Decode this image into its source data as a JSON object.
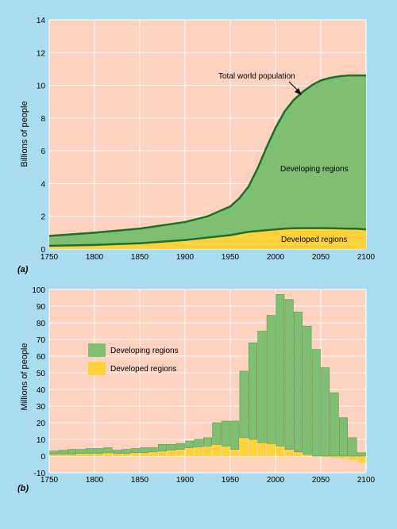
{
  "colors": {
    "background": "#a9dcef",
    "plot_bg": "#fdd2bf",
    "developing": "#7fbf72",
    "developed": "#ffd23a",
    "total_line": "#1f6e2c",
    "grid": "#ffffff",
    "bar_edge": "#5a9a50"
  },
  "chart_data": [
    {
      "type": "area",
      "panel_label": "(a)",
      "ylabel": "Billions of people",
      "xlim": [
        1750,
        2100
      ],
      "ylim": [
        0,
        14
      ],
      "xticks": [
        1750,
        1800,
        1850,
        1900,
        1950,
        2000,
        2050,
        2100
      ],
      "yticks": [
        0,
        2,
        4,
        6,
        8,
        10,
        12,
        14
      ],
      "grid": true,
      "x": [
        1750,
        1800,
        1850,
        1900,
        1925,
        1950,
        1960,
        1970,
        1980,
        1990,
        2000,
        2010,
        2020,
        2030,
        2040,
        2050,
        2060,
        2070,
        2080,
        2090,
        2100
      ],
      "series": [
        {
          "name": "Developed regions",
          "values": [
            0.2,
            0.25,
            0.35,
            0.55,
            0.7,
            0.85,
            0.95,
            1.05,
            1.1,
            1.15,
            1.2,
            1.25,
            1.27,
            1.28,
            1.28,
            1.28,
            1.27,
            1.26,
            1.25,
            1.24,
            1.2
          ]
        },
        {
          "name": "Total world population",
          "values": [
            0.8,
            1.0,
            1.25,
            1.65,
            2.0,
            2.6,
            3.1,
            3.8,
            4.9,
            6.2,
            7.4,
            8.4,
            9.1,
            9.6,
            10.0,
            10.3,
            10.45,
            10.55,
            10.6,
            10.6,
            10.6
          ]
        }
      ],
      "annotations": {
        "total": "Total world population",
        "developing": "Developing regions",
        "developed": "Developed regions"
      }
    },
    {
      "type": "bar",
      "stacked": true,
      "panel_label": "(b)",
      "ylabel": "Millions of people",
      "xlim": [
        1750,
        2100
      ],
      "ylim": [
        -10,
        100
      ],
      "xticks": [
        1750,
        1800,
        1850,
        1900,
        1950,
        2000,
        2050,
        2100
      ],
      "yticks": [
        -10,
        0,
        10,
        20,
        30,
        40,
        50,
        60,
        70,
        80,
        90,
        100
      ],
      "grid": true,
      "legend": {
        "position": "left",
        "labels": [
          "Developing regions",
          "Developed regions"
        ]
      },
      "categories": [
        1750,
        1760,
        1770,
        1780,
        1790,
        1800,
        1810,
        1820,
        1830,
        1840,
        1850,
        1860,
        1870,
        1880,
        1890,
        1900,
        1910,
        1920,
        1930,
        1940,
        1950,
        1960,
        1970,
        1980,
        1990,
        2000,
        2010,
        2020,
        2030,
        2040,
        2050,
        2060,
        2070,
        2080,
        2090
      ],
      "series": [
        {
          "name": "Developed regions",
          "values": [
            1,
            1,
            1,
            1.5,
            1.5,
            1.5,
            2,
            1.5,
            1.5,
            2,
            2,
            2.5,
            3,
            3.5,
            4,
            5,
            5.5,
            6,
            7,
            6,
            4,
            11,
            10,
            8,
            7.5,
            6,
            4,
            2.5,
            1,
            0,
            -0.5,
            -1,
            -1.5,
            -2.5,
            -4
          ]
        },
        {
          "name": "Developing regions",
          "values": [
            2,
            2.5,
            3,
            2.5,
            3,
            3,
            3,
            2,
            2.5,
            2.5,
            3,
            2.5,
            4,
            3.5,
            3.5,
            4,
            4.5,
            5,
            13,
            15,
            17,
            40,
            58,
            67,
            77,
            91,
            90,
            84,
            77,
            64,
            53,
            38,
            23,
            11,
            2
          ]
        }
      ]
    }
  ]
}
